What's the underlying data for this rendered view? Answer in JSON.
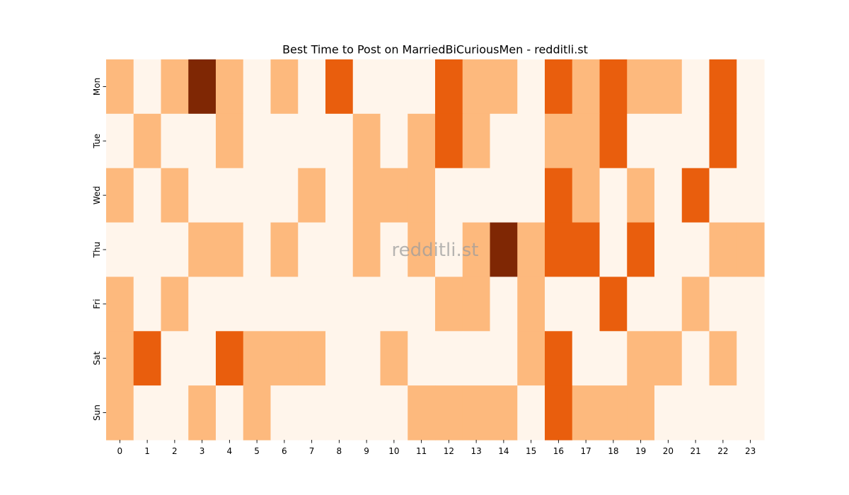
{
  "chart_data": {
    "type": "heatmap",
    "title": "Best Time to Post on MarriedBiCuriousMen - redditli.st",
    "watermark": "redditli.st",
    "x_categories": [
      "0",
      "1",
      "2",
      "3",
      "4",
      "5",
      "6",
      "7",
      "8",
      "9",
      "10",
      "11",
      "12",
      "13",
      "14",
      "15",
      "16",
      "17",
      "18",
      "19",
      "20",
      "21",
      "22",
      "23"
    ],
    "y_categories": [
      "Mon",
      "Tue",
      "Wed",
      "Thu",
      "Fri",
      "Sat",
      "Sun"
    ],
    "colormap": "Oranges",
    "legend": "none",
    "grid": false,
    "levels": 4,
    "level_colors": [
      "#fff5eb",
      "#fdb97d",
      "#e95e0d",
      "#7f2704"
    ],
    "values": [
      [
        1,
        0,
        1,
        3,
        1,
        0,
        1,
        0,
        2,
        0,
        0,
        0,
        2,
        1,
        1,
        0,
        2,
        1,
        2,
        1,
        1,
        0,
        2,
        0
      ],
      [
        0,
        1,
        0,
        0,
        1,
        0,
        0,
        0,
        0,
        1,
        0,
        1,
        2,
        1,
        0,
        0,
        1,
        1,
        2,
        0,
        0,
        0,
        2,
        0
      ],
      [
        1,
        0,
        1,
        0,
        0,
        0,
        0,
        1,
        0,
        1,
        1,
        1,
        0,
        0,
        0,
        0,
        2,
        1,
        0,
        1,
        0,
        2,
        0,
        0
      ],
      [
        0,
        0,
        0,
        1,
        1,
        0,
        1,
        0,
        0,
        1,
        0,
        1,
        0,
        1,
        3,
        1,
        2,
        2,
        0,
        2,
        0,
        0,
        1,
        1
      ],
      [
        1,
        0,
        1,
        0,
        0,
        0,
        0,
        0,
        0,
        0,
        0,
        0,
        1,
        1,
        0,
        1,
        0,
        0,
        2,
        0,
        0,
        1,
        0,
        0
      ],
      [
        1,
        2,
        0,
        0,
        2,
        1,
        1,
        1,
        0,
        0,
        1,
        0,
        0,
        0,
        0,
        1,
        2,
        0,
        0,
        1,
        1,
        0,
        1,
        0
      ],
      [
        1,
        0,
        0,
        1,
        0,
        1,
        0,
        0,
        0,
        0,
        0,
        1,
        1,
        1,
        1,
        0,
        2,
        1,
        1,
        1,
        0,
        0,
        0,
        0
      ]
    ]
  }
}
